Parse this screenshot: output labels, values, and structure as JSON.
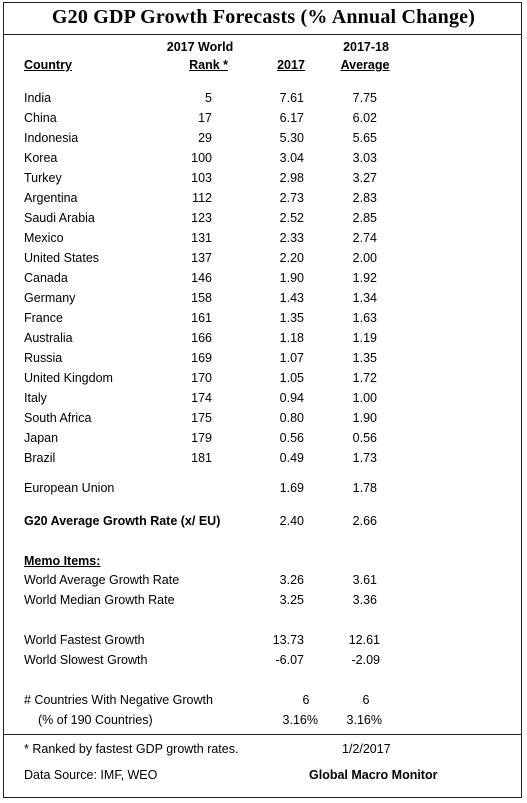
{
  "title": "G20 GDP Growth Forecasts  (% Annual Change)",
  "headers": {
    "country": "Country",
    "rank_line1": "2017 World",
    "rank_line2": "Rank *",
    "y2017": "2017",
    "avg_line1": "2017-18",
    "avg_line2": "Average"
  },
  "rows": [
    {
      "country": "India",
      "rank": "5",
      "y2017": "7.61",
      "avg": "7.75"
    },
    {
      "country": "China",
      "rank": "17",
      "y2017": "6.17",
      "avg": "6.02"
    },
    {
      "country": "Indonesia",
      "rank": "29",
      "y2017": "5.30",
      "avg": "5.65"
    },
    {
      "country": "Korea",
      "rank": "100",
      "y2017": "3.04",
      "avg": "3.03"
    },
    {
      "country": "Turkey",
      "rank": "103",
      "y2017": "2.98",
      "avg": "3.27"
    },
    {
      "country": "Argentina",
      "rank": "112",
      "y2017": "2.73",
      "avg": "2.83"
    },
    {
      "country": "Saudi Arabia",
      "rank": "123",
      "y2017": "2.52",
      "avg": "2.85"
    },
    {
      "country": "Mexico",
      "rank": "131",
      "y2017": "2.33",
      "avg": "2.74"
    },
    {
      "country": "United States",
      "rank": "137",
      "y2017": "2.20",
      "avg": "2.00"
    },
    {
      "country": "Canada",
      "rank": "146",
      "y2017": "1.90",
      "avg": "1.92"
    },
    {
      "country": "Germany",
      "rank": "158",
      "y2017": "1.43",
      "avg": "1.34"
    },
    {
      "country": "France",
      "rank": "161",
      "y2017": "1.35",
      "avg": "1.63"
    },
    {
      "country": "Australia",
      "rank": "166",
      "y2017": "1.18",
      "avg": "1.19"
    },
    {
      "country": "Russia",
      "rank": "169",
      "y2017": "1.07",
      "avg": "1.35"
    },
    {
      "country": "United Kingdom",
      "rank": "170",
      "y2017": "1.05",
      "avg": "1.72"
    },
    {
      "country": "Italy",
      "rank": "174",
      "y2017": "0.94",
      "avg": "1.00"
    },
    {
      "country": "South Africa",
      "rank": "175",
      "y2017": "0.80",
      "avg": "1.90"
    },
    {
      "country": "Japan",
      "rank": "179",
      "y2017": "0.56",
      "avg": "0.56"
    },
    {
      "country": "Brazil",
      "rank": "181",
      "y2017": "0.49",
      "avg": "1.73"
    }
  ],
  "eu": {
    "label": "European Union",
    "y2017": "1.69",
    "avg": "1.78"
  },
  "g20": {
    "label": "G20 Average Growth Rate (x/ EU)",
    "y2017": "2.40",
    "avg": "2.66"
  },
  "memo": {
    "heading": "Memo Items:",
    "world_avg": {
      "label": "World Average Growth Rate",
      "y2017": "3.26",
      "avg": "3.61"
    },
    "world_median": {
      "label": "World Median Growth Rate",
      "y2017": "3.25",
      "avg": "3.36"
    },
    "fastest": {
      "label": "World Fastest Growth",
      "y2017": "13.73",
      "avg": "12.61"
    },
    "slowest": {
      "label": "World Slowest Growth",
      "y2017": "-6.07",
      "avg": "-2.09"
    },
    "neg_count": {
      "label": "# Countries With Negative Growth",
      "y2017": "6",
      "avg": "6"
    },
    "neg_pct": {
      "label": "(% of 190 Countries)",
      "y2017": "3.16%",
      "avg": "3.16%"
    }
  },
  "footer": {
    "note": "* Ranked by fastest GDP growth rates.",
    "date": "1/2/2017",
    "source": "Data Source:  IMF, WEO",
    "publisher": "Global Macro Monitor"
  }
}
